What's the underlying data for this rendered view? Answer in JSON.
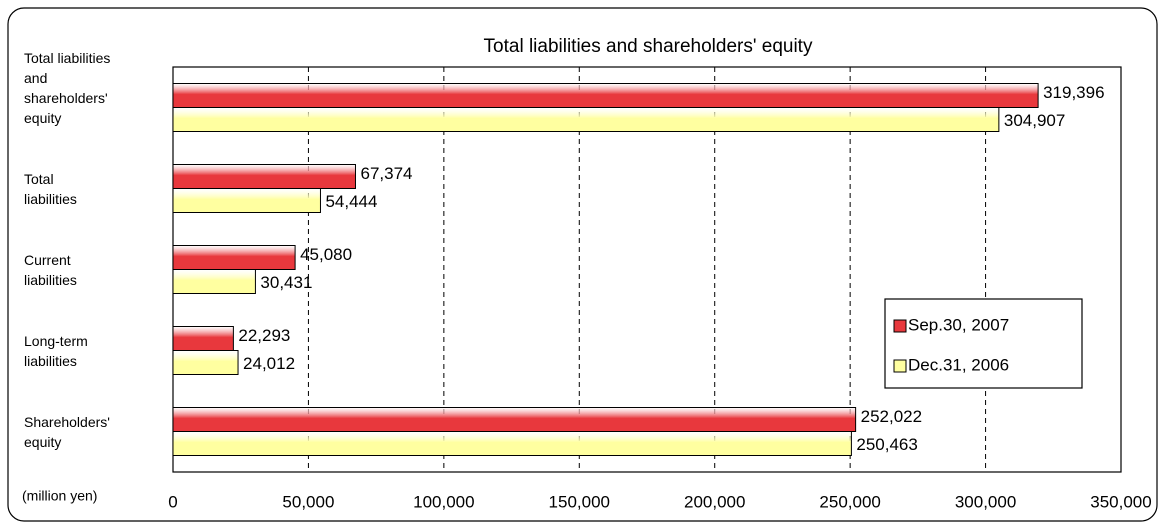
{
  "chart_data": {
    "type": "hbar",
    "title": "Total liabilities and shareholders' equity",
    "annotation": "(million yen)",
    "categories": [
      "Total liabilities\nand\nshareholders'\nequity",
      "Total\nliabilities",
      "Current\nliabilities",
      "Long-term\nliabilities",
      "Shareholders'\nequity"
    ],
    "series": [
      {
        "name": "Sep.30, 2007",
        "color": "#e8383d",
        "values": [
          319396,
          67374,
          45080,
          22293,
          252022
        ],
        "value_labels": [
          "319,396",
          "67,374",
          "45,080",
          "22,293",
          "252,022"
        ]
      },
      {
        "name": "Dec.31, 2006",
        "color": "#ffffa0",
        "values": [
          304907,
          54444,
          30431,
          24012,
          250463
        ],
        "value_labels": [
          "304,907",
          "54,444",
          "30,431",
          "24,012",
          "250,463"
        ]
      }
    ],
    "xlim": [
      0,
      350000
    ],
    "xticks": [
      0,
      {
        "value": 50000,
        "label": "50,000"
      },
      {
        "value": 100000,
        "label": "100,000"
      },
      {
        "value": 150000,
        "label": "150,000"
      },
      {
        "value": 200000,
        "label": "200,000"
      },
      {
        "value": 250000,
        "label": "250,000"
      },
      {
        "value": 300000,
        "label": "300,000"
      },
      {
        "value": 350000,
        "label": "350,000"
      }
    ],
    "grid": true,
    "legend": "right"
  }
}
